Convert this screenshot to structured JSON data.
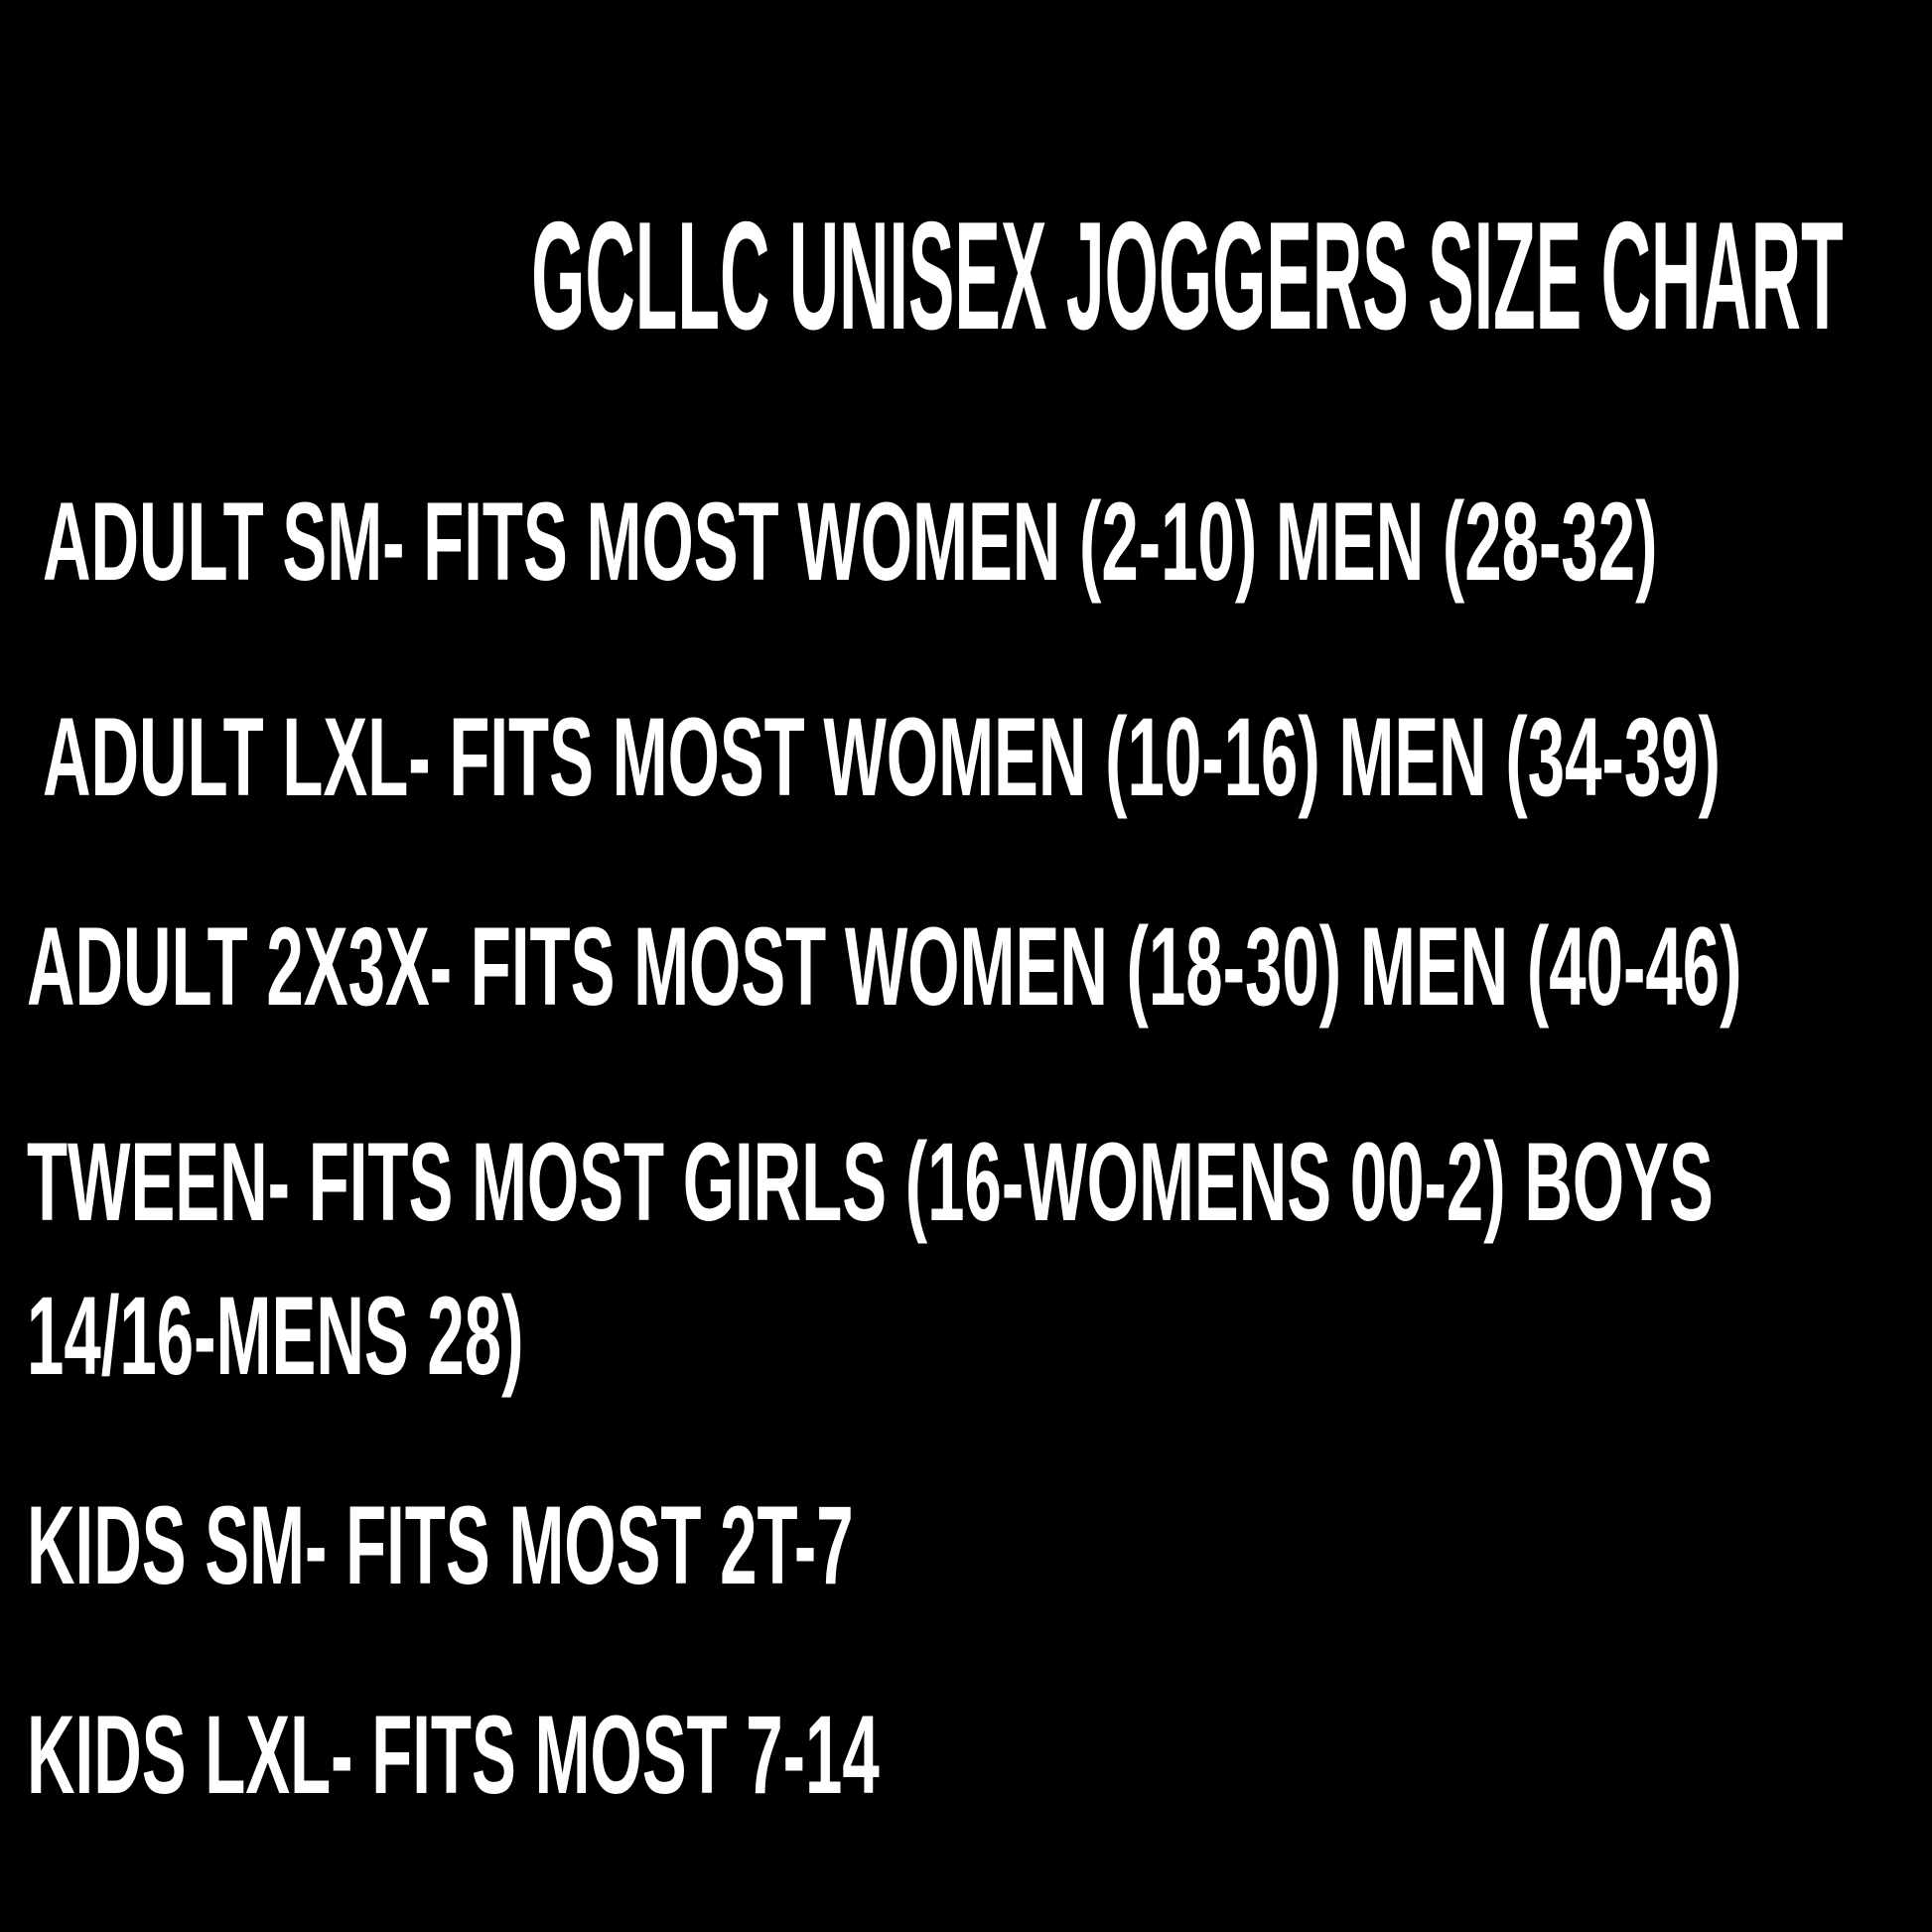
{
  "title": "GCLLC UNISEX JOGGERS SIZE CHART",
  "sizes": [
    "ADULT SM- FITS MOST WOMEN (2-10) MEN (28-32)",
    "ADULT LXL- FITS MOST WOMEN (10-16) MEN (34-39)",
    "ADULT 2X3X- FITS MOST WOMEN (18-30) MEN (40-46)",
    "TWEEN- FITS MOST GIRLS (16-WOMENS 00-2) BOYS",
    "14/16-MENS 28)",
    "KIDS SM- FITS MOST 2T-7",
    "KIDS LXL- FITS MOST 7-14"
  ],
  "colors": {
    "background": "#000000",
    "text": "#ffffff"
  }
}
